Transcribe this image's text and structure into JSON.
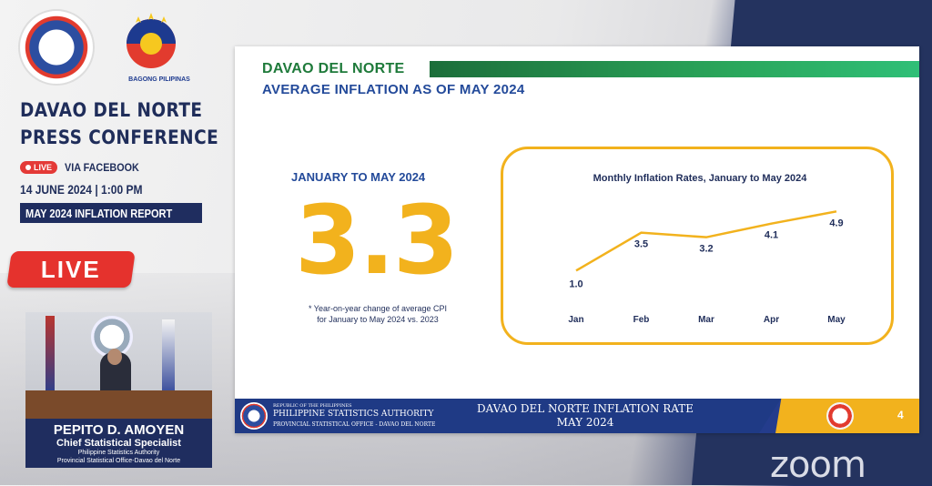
{
  "sidebar": {
    "logo_text": "BAGONG PILIPINAS",
    "title_lines": [
      "DAVAO DEL NORTE",
      "PRESS CONFERENCE"
    ],
    "live_small": "LIVE",
    "via": "VIA FACEBOOK",
    "date": "14 JUNE 2024 | 1:00 PM",
    "report": "MAY 2024 INFLATION REPORT",
    "live_big": "LIVE"
  },
  "speaker": {
    "name": "PEPITO D. AMOYEN",
    "position": "Chief Statistical Specialist",
    "org1": "Philippine Statistics Authority",
    "org2": "Provincial Statistical Office-Davao del Norte"
  },
  "slide": {
    "title": "DAVAO DEL NORTE",
    "subtitle": "AVERAGE INFLATION AS OF MAY 2024",
    "period": "JANUARY TO MAY 2024",
    "value": "3.3",
    "note_line1": "* Year-on-year change of average CPI",
    "note_line2": "for January to May 2024 vs. 2023",
    "footer": {
      "republic": "REPUBLIC OF THE PHILIPPINES",
      "agency": "PHILIPPINE STATISTICS AUTHORITY",
      "office": "PROVINCIAL STATISTICAL OFFICE - DAVAO DEL NORTE",
      "center_line1": "DAVAO DEL NORTE INFLATION RATE",
      "center_line2": "MAY 2024",
      "page": "4"
    }
  },
  "colors": {
    "navy": "#1f2d5f",
    "accent_yellow": "#f2b21d",
    "green": "#1e7a3a",
    "blue_text": "#234a9a",
    "live_red": "#e5322d"
  },
  "chart_data": {
    "type": "line",
    "title": "Monthly Inflation Rates, January to May 2024",
    "categories": [
      "Jan",
      "Feb",
      "Mar",
      "Apr",
      "May"
    ],
    "values": [
      1.0,
      3.5,
      3.2,
      4.1,
      4.9
    ],
    "labels": [
      "1.0",
      "3.5",
      "3.2",
      "4.1",
      "4.9"
    ],
    "ylim": [
      0,
      6
    ],
    "grid": false,
    "line_color": "#f2b21d"
  },
  "watermark": "zoom"
}
